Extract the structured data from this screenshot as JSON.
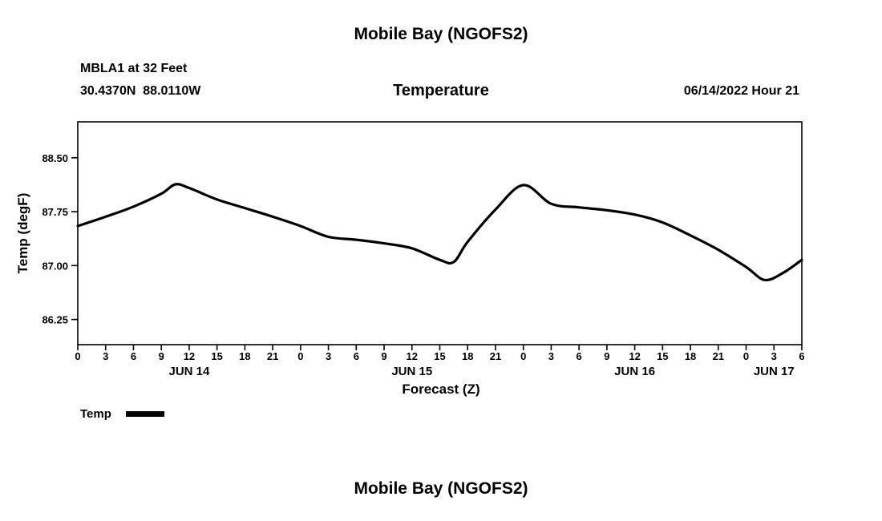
{
  "page": {
    "top_title": "Mobile Bay (NGOFS2)",
    "bottom_title": "Mobile Bay (NGOFS2)"
  },
  "header": {
    "station": "MBLA1 at 32 Feet",
    "coords": "30.4370N  88.0110W",
    "plot_title": "Temperature",
    "datetime": "06/14/2022 Hour 21"
  },
  "legend": {
    "label": "Temp"
  },
  "chart_data": {
    "type": "line",
    "title": "Temperature",
    "xlabel": "Forecast (Z)",
    "ylabel": "Temp (degF)",
    "ylim": [
      85.9,
      89.0
    ],
    "yticks": [
      86.25,
      87.0,
      87.75,
      88.5
    ],
    "ytick_labels": [
      "86.25",
      "87.00",
      "87.75",
      "88.50"
    ],
    "xlim_hours": [
      0,
      78
    ],
    "xtick_hours": [
      0,
      3,
      6,
      9,
      12,
      15,
      18,
      21,
      24,
      27,
      30,
      33,
      36,
      39,
      42,
      45,
      48,
      51,
      54,
      57,
      60,
      63,
      66,
      69,
      72,
      75,
      78
    ],
    "xtick_labels": [
      "0",
      "3",
      "6",
      "9",
      "12",
      "15",
      "18",
      "21",
      "0",
      "3",
      "6",
      "9",
      "12",
      "15",
      "18",
      "21",
      "0",
      "3",
      "6",
      "9",
      "12",
      "15",
      "18",
      "21",
      "0",
      "3",
      "6"
    ],
    "day_labels": [
      {
        "label": "JUN 14",
        "hour": 12
      },
      {
        "label": "JUN 15",
        "hour": 36
      },
      {
        "label": "JUN 16",
        "hour": 60
      },
      {
        "label": "JUN 17",
        "hour": 75
      }
    ],
    "grid": false,
    "legend_position": "below-left",
    "line_color": "#000000",
    "series": [
      {
        "name": "Temp",
        "hours": [
          0,
          3,
          6,
          9,
          10.5,
          12,
          15,
          18,
          21,
          24,
          27,
          30,
          33,
          36,
          39,
          40.5,
          42,
          45,
          48,
          51,
          54,
          57,
          60,
          63,
          66,
          69,
          72,
          74,
          76,
          78
        ],
        "values": [
          87.55,
          87.68,
          87.82,
          88.0,
          88.13,
          88.08,
          87.92,
          87.8,
          87.68,
          87.55,
          87.4,
          87.36,
          87.31,
          87.24,
          87.08,
          87.05,
          87.33,
          87.78,
          88.12,
          87.86,
          87.81,
          87.77,
          87.71,
          87.6,
          87.42,
          87.22,
          86.98,
          86.8,
          86.9,
          87.08
        ]
      }
    ]
  }
}
